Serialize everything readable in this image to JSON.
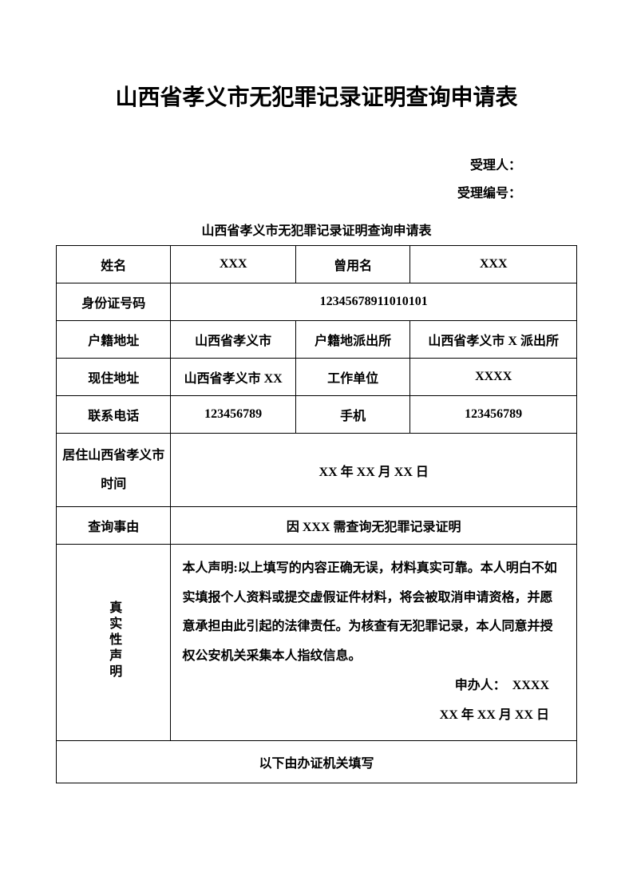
{
  "title": "山西省孝义市无犯罪记录证明查询申请表",
  "header": {
    "receiver_label": "受理人：",
    "receipt_no_label": "受理编号："
  },
  "subtitle": "山西省孝义市无犯罪记录证明查询申请表",
  "table": {
    "name_label": "姓名",
    "name_value": "XXX",
    "former_name_label": "曾用名",
    "former_name_value": "XXX",
    "id_label": "身份证号码",
    "id_value": "12345678911010101",
    "household_addr_label": "户籍地址",
    "household_addr_value": "山西省孝义市",
    "household_station_label": "户籍地派出所",
    "household_station_value": "山西省孝义市 X 派出所",
    "current_addr_label": "现住地址",
    "current_addr_value": "山西省孝义市 XX",
    "work_unit_label": "工作单位",
    "work_unit_value": "XXXX",
    "phone_label": "联系电话",
    "phone_value": "123456789",
    "mobile_label": "手机",
    "mobile_value": "123456789",
    "residence_duration_label": "居住山西省孝义市时间",
    "residence_duration_value": "XX 年 XX 月 XX 日",
    "reason_label": "查询事由",
    "reason_value": "因 XXX 需查询无犯罪记录证明",
    "declaration_label": "真实性声明",
    "declaration_body": "本人声明:以上填写的内容正确无误，材料真实可靠。本人明白不如实填报个人资料或提交虚假证件材料，将会被取消申请资格，并愿意承担由此引起的法律责任。为核查有无犯罪记录，本人同意并授权公安机关采集本人指纹信息。",
    "applicant_label": "申办人：",
    "applicant_value": "XXXX",
    "date_value": "XX 年 XX 月 XX 日",
    "footer_note": "以下由办证机关填写"
  },
  "colors": {
    "text": "#000000",
    "background": "#ffffff",
    "border": "#000000"
  }
}
